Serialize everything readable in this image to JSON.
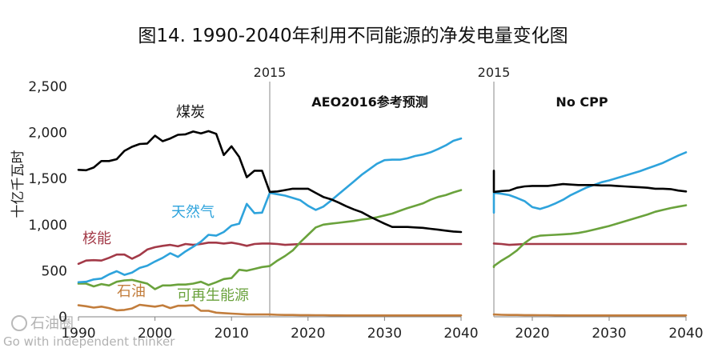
{
  "title": "图14. 1990-2040年利用不同能源的净发电量变化图",
  "watermark": {
    "line1": "石油圈",
    "line2": "Go with independent thinker"
  },
  "colors": {
    "coal": "#000000",
    "gas": "#2ea3dc",
    "nuclear": "#a33a48",
    "renewables": "#6aa23c",
    "oil": "#c27d3c",
    "axis": "#808080",
    "marker_2015": "#b0b0b0"
  },
  "chart_data": [
    {
      "type": "line",
      "panel_title": "AEO2016参考预测",
      "ylabel": "十亿千瓦时",
      "ylim": [
        0,
        2500
      ],
      "yticks": [
        0,
        500,
        1000,
        1500,
        2000,
        2500
      ],
      "ytick_labels": [
        "0",
        "500",
        "1,000",
        "1,500",
        "2,000",
        "2,500"
      ],
      "xlim": [
        1990,
        2040
      ],
      "xticks": [
        1990,
        2000,
        2010,
        2020,
        2030,
        2040
      ],
      "xtick_labels": [
        "1990",
        "2000",
        "2010",
        "2020",
        "2030",
        "2040"
      ],
      "marker_year": 2015,
      "marker_label": "2015",
      "series": [
        {
          "name": "煤炭",
          "key": "coal",
          "x": [
            1990,
            1991,
            1992,
            1993,
            1994,
            1995,
            1996,
            1997,
            1998,
            1999,
            2000,
            2001,
            2002,
            2003,
            2004,
            2005,
            2006,
            2007,
            2008,
            2009,
            2010,
            2011,
            2012,
            2013,
            2014,
            2015,
            2016,
            2017,
            2018,
            2019,
            2020,
            2021,
            2022,
            2023,
            2024,
            2025,
            2026,
            2027,
            2028,
            2029,
            2030,
            2031,
            2032,
            2033,
            2034,
            2035,
            2036,
            2037,
            2038,
            2039,
            2040
          ],
          "values": [
            1595,
            1590,
            1620,
            1690,
            1690,
            1710,
            1800,
            1845,
            1875,
            1880,
            1965,
            1905,
            1935,
            1975,
            1980,
            2010,
            1990,
            2015,
            1985,
            1755,
            1850,
            1735,
            1515,
            1585,
            1585,
            1355,
            1360,
            1375,
            1390,
            1390,
            1390,
            1345,
            1300,
            1275,
            1240,
            1200,
            1165,
            1135,
            1090,
            1050,
            1010,
            975,
            975,
            975,
            970,
            965,
            955,
            945,
            935,
            925,
            920
          ]
        },
        {
          "name": "天然气",
          "key": "gas",
          "x": [
            1990,
            1991,
            1992,
            1993,
            1994,
            1995,
            1996,
            1997,
            1998,
            1999,
            2000,
            2001,
            2002,
            2003,
            2004,
            2005,
            2006,
            2007,
            2008,
            2009,
            2010,
            2011,
            2012,
            2013,
            2014,
            2015,
            2016,
            2017,
            2018,
            2019,
            2020,
            2021,
            2022,
            2023,
            2024,
            2025,
            2026,
            2027,
            2028,
            2029,
            2030,
            2031,
            2032,
            2033,
            2034,
            2035,
            2036,
            2037,
            2038,
            2039,
            2040
          ],
          "values": [
            375,
            380,
            405,
            415,
            460,
            495,
            455,
            480,
            530,
            555,
            600,
            640,
            690,
            650,
            710,
            760,
            815,
            890,
            880,
            920,
            990,
            1010,
            1225,
            1125,
            1130,
            1345,
            1330,
            1315,
            1290,
            1265,
            1205,
            1160,
            1195,
            1260,
            1330,
            1400,
            1470,
            1540,
            1600,
            1660,
            1700,
            1705,
            1705,
            1720,
            1745,
            1760,
            1785,
            1820,
            1860,
            1910,
            1935
          ]
        },
        {
          "name": "核能",
          "key": "nuclear",
          "x": [
            1990,
            1991,
            1992,
            1993,
            1994,
            1995,
            1996,
            1997,
            1998,
            1999,
            2000,
            2001,
            2002,
            2003,
            2004,
            2005,
            2006,
            2007,
            2008,
            2009,
            2010,
            2011,
            2012,
            2013,
            2014,
            2015,
            2016,
            2017,
            2018,
            2019,
            2020,
            2021,
            2022,
            2023,
            2024,
            2025,
            2026,
            2027,
            2028,
            2029,
            2030,
            2031,
            2032,
            2033,
            2034,
            2035,
            2036,
            2037,
            2038,
            2039,
            2040
          ],
          "values": [
            575,
            610,
            615,
            610,
            640,
            675,
            675,
            630,
            670,
            730,
            755,
            770,
            780,
            765,
            790,
            780,
            790,
            805,
            805,
            795,
            805,
            790,
            770,
            790,
            795,
            795,
            790,
            780,
            785,
            790,
            790,
            790,
            790,
            790,
            790,
            790,
            790,
            790,
            790,
            790,
            790,
            790,
            790,
            790,
            790,
            790,
            790,
            790,
            790,
            790,
            790
          ]
        },
        {
          "name": "可再生能源",
          "key": "renewables",
          "x": [
            1990,
            1991,
            1992,
            1993,
            1994,
            1995,
            1996,
            1997,
            1998,
            1999,
            2000,
            2001,
            2002,
            2003,
            2004,
            2005,
            2006,
            2007,
            2008,
            2009,
            2010,
            2011,
            2012,
            2013,
            2014,
            2015,
            2016,
            2017,
            2018,
            2019,
            2020,
            2021,
            2022,
            2023,
            2024,
            2025,
            2026,
            2027,
            2028,
            2029,
            2030,
            2031,
            2032,
            2033,
            2034,
            2035,
            2036,
            2037,
            2038,
            2039,
            2040
          ],
          "values": [
            360,
            360,
            330,
            355,
            340,
            380,
            395,
            400,
            380,
            360,
            300,
            340,
            340,
            350,
            350,
            360,
            380,
            345,
            375,
            410,
            420,
            510,
            500,
            520,
            540,
            550,
            610,
            660,
            720,
            810,
            890,
            970,
            1000,
            1010,
            1020,
            1030,
            1040,
            1055,
            1065,
            1080,
            1100,
            1120,
            1150,
            1180,
            1205,
            1230,
            1270,
            1300,
            1320,
            1350,
            1375
          ]
        },
        {
          "name": "石油",
          "key": "oil",
          "x": [
            1990,
            1991,
            1992,
            1993,
            1994,
            1995,
            1996,
            1997,
            1998,
            1999,
            2000,
            2001,
            2002,
            2003,
            2004,
            2005,
            2006,
            2007,
            2008,
            2009,
            2010,
            2011,
            2012,
            2013,
            2014,
            2015,
            2016,
            2017,
            2018,
            2019,
            2020,
            2021,
            2022,
            2023,
            2024,
            2025,
            2026,
            2027,
            2028,
            2029,
            2030,
            2031,
            2032,
            2033,
            2034,
            2035,
            2036,
            2037,
            2038,
            2039,
            2040
          ],
          "values": [
            125,
            115,
            100,
            110,
            95,
            70,
            75,
            90,
            130,
            120,
            110,
            125,
            95,
            120,
            120,
            125,
            65,
            65,
            45,
            40,
            35,
            30,
            25,
            25,
            25,
            25,
            22,
            20,
            20,
            18,
            18,
            17,
            17,
            16,
            16,
            15,
            15,
            15,
            15,
            15,
            15,
            15,
            15,
            15,
            15,
            15,
            15,
            15,
            15,
            15,
            15
          ]
        }
      ],
      "annotations": [
        {
          "text": "煤炭",
          "series": "coal"
        },
        {
          "text": "天然气",
          "series": "gas"
        },
        {
          "text": "核能",
          "series": "nuclear"
        },
        {
          "text": "可再生能源",
          "series": "renewables"
        },
        {
          "text": "石油",
          "series": "oil"
        }
      ]
    },
    {
      "type": "line",
      "panel_title": "No CPP",
      "ylim": [
        0,
        2500
      ],
      "xlim": [
        2015,
        2040
      ],
      "xticks": [
        2020,
        2030,
        2040
      ],
      "xtick_labels": [
        "2020",
        "2030",
        "2040"
      ],
      "marker_year": 2015,
      "marker_label": "2015",
      "series": [
        {
          "key": "coal",
          "x": [
            2014,
            2015,
            2016,
            2017,
            2018,
            2019,
            2020,
            2021,
            2022,
            2023,
            2024,
            2025,
            2026,
            2027,
            2028,
            2029,
            2030,
            2031,
            2032,
            2033,
            2034,
            2035,
            2036,
            2037,
            2038,
            2039,
            2040
          ],
          "values": [
            1585,
            1355,
            1365,
            1370,
            1400,
            1415,
            1420,
            1420,
            1420,
            1430,
            1440,
            1435,
            1430,
            1430,
            1430,
            1425,
            1425,
            1420,
            1415,
            1410,
            1405,
            1400,
            1390,
            1390,
            1385,
            1370,
            1360
          ]
        },
        {
          "key": "gas",
          "x": [
            2014,
            2015,
            2016,
            2017,
            2018,
            2019,
            2020,
            2021,
            2022,
            2023,
            2024,
            2025,
            2026,
            2027,
            2028,
            2029,
            2030,
            2031,
            2032,
            2033,
            2034,
            2035,
            2036,
            2037,
            2038,
            2039,
            2040
          ],
          "values": [
            1130,
            1345,
            1335,
            1320,
            1290,
            1255,
            1190,
            1170,
            1195,
            1230,
            1270,
            1320,
            1360,
            1400,
            1430,
            1460,
            1480,
            1505,
            1530,
            1555,
            1580,
            1610,
            1640,
            1670,
            1710,
            1750,
            1785
          ]
        },
        {
          "key": "nuclear",
          "x": [
            2014,
            2015,
            2016,
            2017,
            2018,
            2019,
            2020,
            2021,
            2022,
            2023,
            2024,
            2025,
            2026,
            2027,
            2028,
            2029,
            2030,
            2031,
            2032,
            2033,
            2034,
            2035,
            2036,
            2037,
            2038,
            2039,
            2040
          ],
          "values": [
            795,
            795,
            790,
            780,
            785,
            790,
            790,
            790,
            790,
            790,
            790,
            790,
            790,
            790,
            790,
            790,
            790,
            790,
            790,
            790,
            790,
            790,
            790,
            790,
            790,
            790,
            790
          ]
        },
        {
          "key": "renewables",
          "x": [
            2014,
            2015,
            2016,
            2017,
            2018,
            2019,
            2020,
            2021,
            2022,
            2023,
            2024,
            2025,
            2026,
            2027,
            2028,
            2029,
            2030,
            2031,
            2032,
            2033,
            2034,
            2035,
            2036,
            2037,
            2038,
            2039,
            2040
          ],
          "values": [
            540,
            550,
            610,
            660,
            720,
            800,
            860,
            880,
            885,
            890,
            895,
            900,
            910,
            925,
            945,
            965,
            985,
            1010,
            1035,
            1060,
            1085,
            1110,
            1140,
            1160,
            1180,
            1195,
            1210
          ]
        },
        {
          "key": "oil",
          "x": [
            2014,
            2015,
            2016,
            2017,
            2018,
            2019,
            2020,
            2021,
            2022,
            2023,
            2024,
            2025,
            2026,
            2027,
            2028,
            2029,
            2030,
            2031,
            2032,
            2033,
            2034,
            2035,
            2036,
            2037,
            2038,
            2039,
            2040
          ],
          "values": [
            25,
            25,
            22,
            20,
            20,
            18,
            18,
            17,
            17,
            16,
            16,
            15,
            15,
            15,
            15,
            15,
            15,
            15,
            15,
            15,
            15,
            15,
            15,
            15,
            15,
            15,
            15
          ]
        }
      ]
    }
  ]
}
